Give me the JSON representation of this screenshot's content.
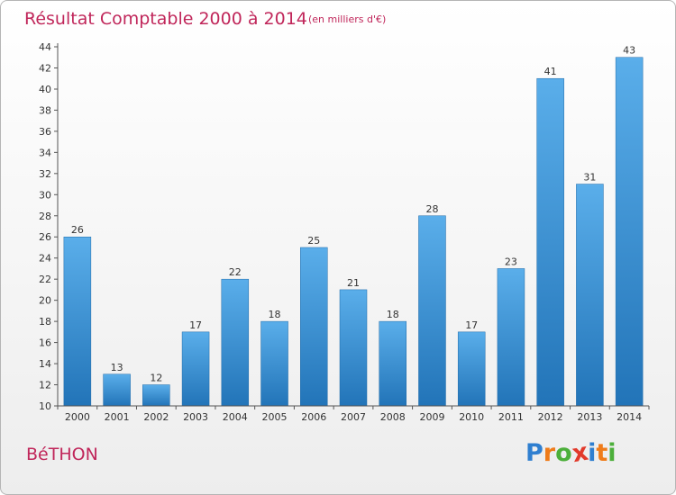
{
  "chart_data": {
    "type": "bar",
    "title": "Résultat Comptable 2000 à 2014",
    "subtitle": "(en milliers d'€)",
    "xlabel": "",
    "ylabel": "",
    "categories": [
      "2000",
      "2001",
      "2002",
      "2003",
      "2004",
      "2005",
      "2006",
      "2007",
      "2008",
      "2009",
      "2010",
      "2011",
      "2012",
      "2013",
      "2014"
    ],
    "values": [
      26,
      13,
      12,
      17,
      22,
      18,
      25,
      21,
      18,
      28,
      17,
      23,
      41,
      31,
      43
    ],
    "ylim": [
      10,
      44
    ],
    "yticks": [
      10,
      12,
      14,
      16,
      18,
      20,
      22,
      24,
      26,
      28,
      30,
      32,
      34,
      36,
      38,
      40,
      42,
      44
    ],
    "grid": false,
    "bar_color": "#3a8fd6"
  },
  "footer": {
    "town": "BéTHON",
    "logo_letters": [
      "P",
      "r",
      "o",
      "x",
      "i",
      "t",
      "i"
    ],
    "logo_colors": [
      "#2f7fd0",
      "#ef7c1a",
      "#4caf3a",
      "#e23a2b",
      "#2f7fd0",
      "#ef7c1a",
      "#4caf3a"
    ]
  }
}
